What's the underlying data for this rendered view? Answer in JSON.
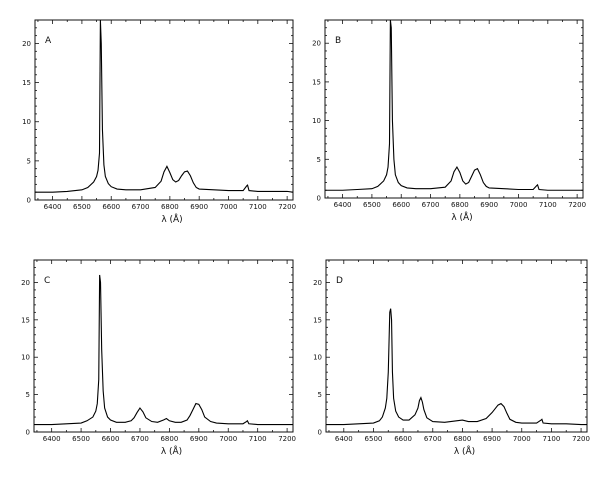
{
  "chart_data": [
    {
      "type": "line",
      "panel_label": "A",
      "xlabel": "λ (Å)",
      "ylabel": "",
      "xlim": [
        6340,
        7220
      ],
      "ylim": [
        0,
        23
      ],
      "xticks": [
        6400,
        6500,
        6600,
        6700,
        6800,
        6900,
        7000,
        7100,
        7200
      ],
      "xtick_labels": [
        "6400",
        "6500",
        "6600",
        "6700",
        "6800",
        "6900",
        "7000",
        "7100",
        "7200"
      ],
      "yticks": [
        0,
        5,
        10,
        15,
        20
      ],
      "ytick_labels": [
        "0",
        "5",
        "10",
        "15",
        "20"
      ],
      "grid": false,
      "baseline": [
        [
          6340,
          1.0
        ],
        [
          6600,
          1.3
        ],
        [
          7000,
          1.1
        ],
        [
          7220,
          1.0
        ]
      ],
      "series": [
        {
          "x": [
            6340,
            6400,
            6450,
            6500,
            6520,
            6540,
            6550,
            6555,
            6560,
            6563,
            6566,
            6570,
            6575,
            6580,
            6590,
            6600,
            6620,
            6650,
            6700,
            6750,
            6770,
            6780,
            6790,
            6800,
            6810,
            6820,
            6830,
            6840,
            6850,
            6860,
            6870,
            6880,
            6890,
            6900,
            6950,
            7000,
            7050,
            7062,
            7065,
            7070,
            7100,
            7150,
            7200,
            7220
          ],
          "y": [
            1.0,
            1.0,
            1.1,
            1.3,
            1.6,
            2.3,
            3.0,
            3.8,
            6.0,
            23,
            20,
            9.0,
            4.5,
            3.0,
            2.1,
            1.7,
            1.4,
            1.3,
            1.3,
            1.6,
            2.4,
            3.6,
            4.3,
            3.5,
            2.6,
            2.3,
            2.5,
            3.1,
            3.6,
            3.7,
            3.1,
            2.2,
            1.6,
            1.4,
            1.3,
            1.2,
            1.2,
            1.8,
            1.9,
            1.2,
            1.1,
            1.1,
            1.1,
            1.0
          ]
        }
      ]
    },
    {
      "type": "line",
      "panel_label": "B",
      "xlabel": "λ (Å)",
      "ylabel": "",
      "xlim": [
        6340,
        7220
      ],
      "ylim": [
        0,
        23
      ],
      "xticks": [
        6400,
        6500,
        6600,
        6700,
        6800,
        6900,
        7000,
        7100,
        7200
      ],
      "xtick_labels": [
        "6400",
        "6500",
        "6600",
        "6700",
        "6800",
        "6900",
        "7000",
        "7100",
        "7200"
      ],
      "yticks": [
        0,
        5,
        10,
        15,
        20
      ],
      "ytick_labels": [
        "0",
        "5",
        "10",
        "15",
        "20"
      ],
      "grid": false,
      "series": [
        {
          "x": [
            6340,
            6400,
            6450,
            6500,
            6520,
            6540,
            6550,
            6555,
            6560,
            6563,
            6566,
            6570,
            6575,
            6580,
            6590,
            6600,
            6620,
            6650,
            6700,
            6750,
            6770,
            6780,
            6790,
            6800,
            6810,
            6820,
            6830,
            6840,
            6850,
            6860,
            6870,
            6880,
            6890,
            6900,
            6950,
            7000,
            7050,
            7062,
            7065,
            7070,
            7100,
            7150,
            7200,
            7220
          ],
          "y": [
            1.0,
            1.0,
            1.1,
            1.2,
            1.5,
            2.2,
            3.0,
            4.0,
            7.0,
            23,
            22,
            10,
            5.0,
            3.0,
            2.0,
            1.6,
            1.3,
            1.2,
            1.2,
            1.4,
            2.2,
            3.4,
            4.0,
            3.3,
            2.2,
            1.8,
            2.0,
            2.8,
            3.6,
            3.8,
            3.0,
            2.0,
            1.5,
            1.3,
            1.2,
            1.1,
            1.1,
            1.6,
            1.7,
            1.1,
            1.0,
            1.0,
            1.0,
            1.0
          ]
        }
      ]
    },
    {
      "type": "line",
      "panel_label": "C",
      "xlabel": "λ (Å)",
      "ylabel": "",
      "xlim": [
        6340,
        7220
      ],
      "ylim": [
        0,
        23
      ],
      "xticks": [
        6400,
        6500,
        6600,
        6700,
        6800,
        6900,
        7000,
        7100,
        7200
      ],
      "xtick_labels": [
        "6400",
        "6500",
        "6600",
        "6700",
        "6800",
        "6900",
        "7000",
        "7100",
        "7200"
      ],
      "yticks": [
        0,
        5,
        10,
        15,
        20
      ],
      "ytick_labels": [
        "0",
        "5",
        "10",
        "15",
        "20"
      ],
      "grid": false,
      "series": [
        {
          "x": [
            6340,
            6400,
            6450,
            6500,
            6520,
            6540,
            6550,
            6555,
            6560,
            6563,
            6566,
            6570,
            6575,
            6580,
            6590,
            6600,
            6620,
            6650,
            6670,
            6680,
            6690,
            6700,
            6710,
            6720,
            6740,
            6760,
            6780,
            6790,
            6800,
            6820,
            6840,
            6860,
            6870,
            6880,
            6890,
            6900,
            6910,
            6920,
            6940,
            6960,
            7000,
            7050,
            7062,
            7065,
            7070,
            7100,
            7150,
            7200,
            7220
          ],
          "y": [
            1.0,
            1.0,
            1.1,
            1.2,
            1.5,
            2.0,
            2.8,
            3.8,
            7.0,
            21,
            20,
            11,
            5.5,
            3.2,
            2.0,
            1.6,
            1.3,
            1.3,
            1.5,
            1.9,
            2.6,
            3.2,
            2.7,
            1.9,
            1.4,
            1.3,
            1.6,
            1.8,
            1.5,
            1.3,
            1.3,
            1.6,
            2.2,
            3.0,
            3.8,
            3.7,
            3.0,
            2.0,
            1.4,
            1.2,
            1.1,
            1.1,
            1.4,
            1.5,
            1.1,
            1.0,
            1.0,
            1.0,
            1.0
          ]
        }
      ]
    },
    {
      "type": "line",
      "panel_label": "D",
      "xlabel": "λ (Å)",
      "ylabel": "",
      "xlim": [
        6340,
        7220
      ],
      "ylim": [
        0,
        23
      ],
      "xticks": [
        6400,
        6500,
        6600,
        6700,
        6800,
        6900,
        7000,
        7100,
        7200
      ],
      "xtick_labels": [
        "6400",
        "6500",
        "6600",
        "6700",
        "6800",
        "6900",
        "7000",
        "7100",
        "7200"
      ],
      "yticks": [
        0,
        5,
        10,
        15,
        20
      ],
      "ytick_labels": [
        "0",
        "5",
        "10",
        "15",
        "20"
      ],
      "grid": false,
      "series": [
        {
          "x": [
            6340,
            6400,
            6450,
            6500,
            6520,
            6530,
            6540,
            6545,
            6550,
            6555,
            6558,
            6561,
            6564,
            6568,
            6575,
            6585,
            6600,
            6620,
            6640,
            6650,
            6655,
            6660,
            6665,
            6670,
            6680,
            6700,
            6740,
            6780,
            6800,
            6820,
            6850,
            6880,
            6900,
            6920,
            6930,
            6940,
            6950,
            6960,
            6980,
            7000,
            7050,
            7065,
            7068,
            7072,
            7100,
            7150,
            7200,
            7220
          ],
          "y": [
            1.0,
            1.0,
            1.1,
            1.2,
            1.5,
            2.0,
            3.2,
            4.5,
            8.0,
            16,
            16.5,
            15,
            8.0,
            4.5,
            2.8,
            2.0,
            1.6,
            1.6,
            2.3,
            3.2,
            4.2,
            4.6,
            4.0,
            3.0,
            1.9,
            1.4,
            1.3,
            1.5,
            1.6,
            1.4,
            1.4,
            1.8,
            2.6,
            3.6,
            3.8,
            3.4,
            2.5,
            1.7,
            1.3,
            1.2,
            1.2,
            1.6,
            1.7,
            1.2,
            1.1,
            1.1,
            1.0,
            1.0
          ]
        }
      ]
    }
  ]
}
